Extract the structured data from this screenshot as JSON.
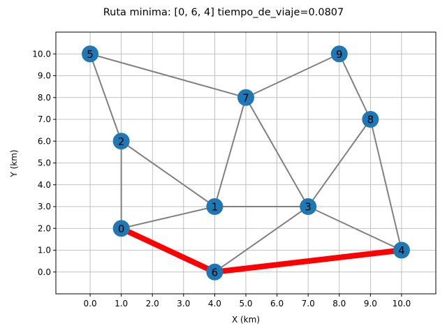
{
  "chart_data": {
    "type": "scatter",
    "title": "Ruta minima: [0, 6, 4] tiempo_de_viaje=0.0807",
    "xlabel": "X (km)",
    "ylabel": "Y (km)",
    "xlim": [
      -1.1,
      11.1
    ],
    "ylim": [
      -1.0,
      11.0
    ],
    "grid": true,
    "xticks": [
      0,
      1,
      2,
      3,
      4,
      5,
      6,
      7,
      8,
      9,
      10
    ],
    "yticks": [
      0,
      1,
      2,
      3,
      4,
      5,
      6,
      7,
      8,
      9,
      10
    ],
    "xtick_labels": [
      "0.0",
      "1.0",
      "2.0",
      "3.0",
      "4.0",
      "5.0",
      "6.0",
      "7.0",
      "8.0",
      "9.0",
      "10.0"
    ],
    "ytick_labels": [
      "0.0",
      "1.0",
      "2.0",
      "3.0",
      "4.0",
      "5.0",
      "6.0",
      "7.0",
      "8.0",
      "9.0",
      "10.0"
    ],
    "nodes": [
      {
        "id": "0",
        "x": 1,
        "y": 2
      },
      {
        "id": "1",
        "x": 4,
        "y": 3
      },
      {
        "id": "2",
        "x": 1,
        "y": 6
      },
      {
        "id": "3",
        "x": 7,
        "y": 3
      },
      {
        "id": "4",
        "x": 10,
        "y": 1
      },
      {
        "id": "5",
        "x": 0,
        "y": 10
      },
      {
        "id": "6",
        "x": 4,
        "y": 0
      },
      {
        "id": "7",
        "x": 5,
        "y": 8
      },
      {
        "id": "8",
        "x": 9,
        "y": 7
      },
      {
        "id": "9",
        "x": 8,
        "y": 10
      }
    ],
    "edges": [
      [
        "5",
        "2"
      ],
      [
        "5",
        "7"
      ],
      [
        "2",
        "0"
      ],
      [
        "2",
        "1"
      ],
      [
        "0",
        "1"
      ],
      [
        "0",
        "6"
      ],
      [
        "1",
        "3"
      ],
      [
        "1",
        "7"
      ],
      [
        "7",
        "3"
      ],
      [
        "7",
        "9"
      ],
      [
        "9",
        "8"
      ],
      [
        "8",
        "3"
      ],
      [
        "8",
        "4"
      ],
      [
        "3",
        "4"
      ],
      [
        "3",
        "6"
      ],
      [
        "6",
        "4"
      ]
    ],
    "shortest_path": [
      "0",
      "6",
      "4"
    ],
    "colors": {
      "node": "#1f77b4",
      "edge": "#808080",
      "path": "#ff0000"
    }
  }
}
